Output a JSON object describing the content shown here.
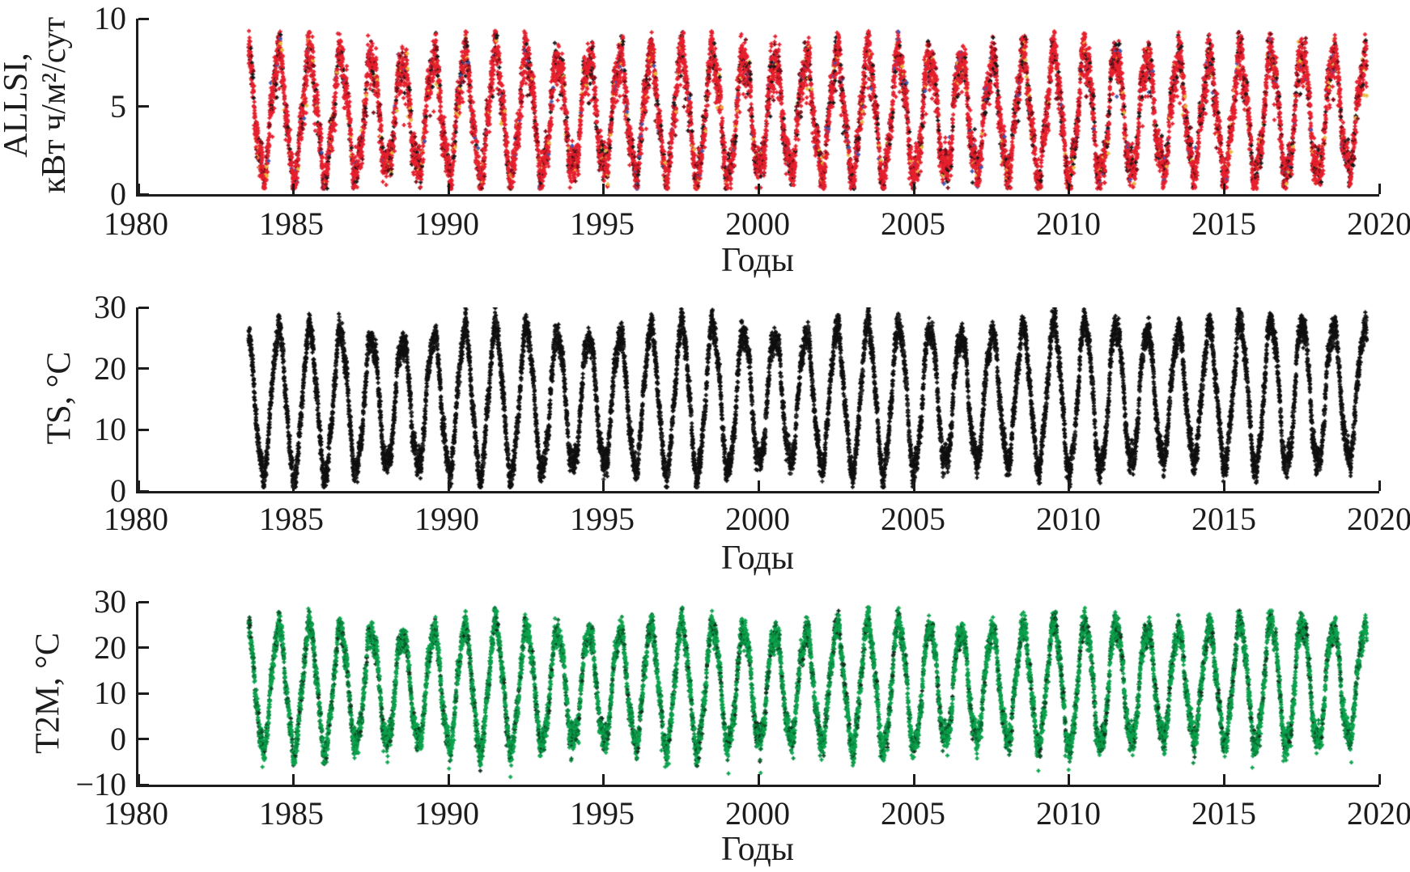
{
  "figure": {
    "background": "#ffffff",
    "axis_color": "#1c1c1c",
    "text_color": "#1c1c1c",
    "panel_count": 3
  },
  "chart_data": [
    {
      "id": "allsi",
      "type": "scatter",
      "title": "",
      "ylabel": "ALLSI, кВт ч/м²/сут",
      "ylabel_lines": [
        "ALLSI,",
        "кВт ч/м²/сут"
      ],
      "xlabel": "Годы",
      "xlim": [
        1980,
        2020
      ],
      "ylim": [
        0,
        10
      ],
      "xticks": [
        1980,
        1985,
        1990,
        1995,
        2000,
        2005,
        2010,
        2015,
        2020
      ],
      "yticks": [
        0,
        5,
        10
      ],
      "ytick_labels": [
        "0",
        "5",
        "10"
      ],
      "grid": false,
      "legend": null,
      "series": {
        "name": "ALLSI",
        "marker": "plus",
        "cadence": "daily",
        "start_year": 1983.55,
        "end_year": 2019.6,
        "summer_max_approx": 9.0,
        "winter_min_approx": 0.4,
        "palette": [
          [
            "#e6202e",
            0.74
          ],
          [
            "#7d0c18",
            0.12
          ],
          [
            "#181818",
            0.09
          ],
          [
            "#e8b93c",
            0.03
          ],
          [
            "#4356b0",
            0.02
          ]
        ],
        "gen": {
          "seed": 11,
          "mean": 4.6,
          "amp": 3.4,
          "amp_mod": 0.07,
          "trend": 0,
          "w1": 0.5,
          "f1": 3.17,
          "w2": 0.3,
          "f2": 7.31,
          "noise": 0.5,
          "skew_p": 0.3,
          "skew_down": 2.6,
          "clamp": [
            0.3,
            9.3
          ]
        }
      }
    },
    {
      "id": "ts",
      "type": "scatter",
      "title": "",
      "ylabel": "TS, °C",
      "ylabel_lines": [
        "TS, °C"
      ],
      "xlabel": "Годы",
      "xlim": [
        1980,
        2020
      ],
      "ylim": [
        0,
        30
      ],
      "xticks": [
        1980,
        1985,
        1990,
        1995,
        2000,
        2005,
        2010,
        2015,
        2020
      ],
      "yticks": [
        0,
        10,
        20,
        30
      ],
      "ytick_labels": [
        "0",
        "10",
        "20",
        "30"
      ],
      "grid": false,
      "legend": null,
      "series": {
        "name": "TS",
        "marker": "plus",
        "cadence": "daily",
        "start_year": 1983.55,
        "end_year": 2019.6,
        "summer_max_approx": 30,
        "winter_min_approx": 1,
        "palette": [
          [
            "#101010",
            0.92
          ],
          [
            "#2a2a2a",
            0.08
          ]
        ],
        "gen": {
          "seed": 22,
          "mean": 15.0,
          "amp": 11.2,
          "amp_mod": 0.08,
          "trend": 0.045,
          "w1": 0.9,
          "f1": 3.17,
          "w2": 0.6,
          "f2": 7.31,
          "noise": 1.0,
          "clamp": [
            0.6,
            30
          ]
        }
      }
    },
    {
      "id": "t2m",
      "type": "scatter",
      "title": "",
      "ylabel": "T2M, °C",
      "ylabel_lines": [
        "T2M, °C"
      ],
      "xlabel": "Годы",
      "xlim": [
        1980,
        2020
      ],
      "ylim": [
        -10,
        30
      ],
      "xticks": [
        1980,
        1985,
        1990,
        1995,
        2000,
        2005,
        2010,
        2015,
        2020
      ],
      "yticks": [
        -10,
        0,
        10,
        20,
        30
      ],
      "ytick_labels": [
        "−10",
        "0",
        "10",
        "20",
        "30"
      ],
      "grid": false,
      "legend": null,
      "series": {
        "name": "T2M",
        "marker": "plus",
        "cadence": "daily",
        "start_year": 1983.55,
        "end_year": 2019.6,
        "summer_max_approx": 29,
        "winter_min_approx": -8,
        "palette": [
          [
            "#0ca34e",
            0.58
          ],
          [
            "#0a8a41",
            0.16
          ],
          [
            "#076b31",
            0.12
          ],
          [
            "#0c4f27",
            0.08
          ],
          [
            "#14301d",
            0.06
          ]
        ],
        "gen": {
          "seed": 33,
          "mean": 11.6,
          "amp": 12.6,
          "amp_mod": 0.08,
          "trend": 0.03,
          "w1": 1.1,
          "f1": 3.17,
          "w2": 0.8,
          "f2": 7.31,
          "noise": 1.3,
          "snap_p": 0.06,
          "snap": 3.5,
          "outlier_p": 0.003,
          "outlier": 4,
          "clamp": [
            -8.4,
            28.8
          ]
        }
      }
    }
  ]
}
